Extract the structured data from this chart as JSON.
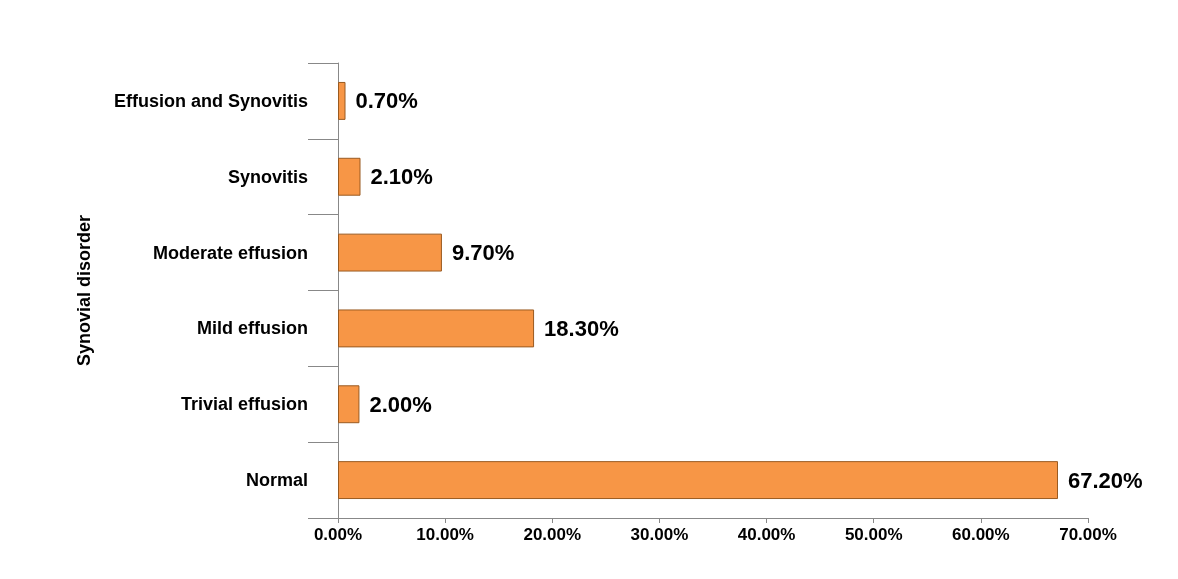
{
  "chart_data": {
    "type": "bar",
    "orientation": "horizontal",
    "ylabel": "Synovial disorder",
    "categories": [
      "Effusion and Synovitis",
      "Synovitis",
      "Moderate effusion",
      "Mild effusion",
      "Trivial effusion",
      "Normal"
    ],
    "values": [
      0.7,
      2.1,
      9.7,
      18.3,
      2.0,
      67.2
    ],
    "value_labels": [
      "0.70%",
      "2.10%",
      "9.70%",
      "18.30%",
      "2.00%",
      "67.20%"
    ],
    "color": "#f79646",
    "xlim": [
      0,
      70
    ],
    "xticks": [
      {
        "value": 0,
        "label": "0.00%"
      },
      {
        "value": 10,
        "label": "10.00%"
      },
      {
        "value": 20,
        "label": "20.00%"
      },
      {
        "value": 30,
        "label": "30.00%"
      },
      {
        "value": 40,
        "label": "40.00%"
      },
      {
        "value": 50,
        "label": "50.00%"
      },
      {
        "value": 60,
        "label": "60.00%"
      },
      {
        "value": 70,
        "label": "70.00%"
      }
    ]
  }
}
